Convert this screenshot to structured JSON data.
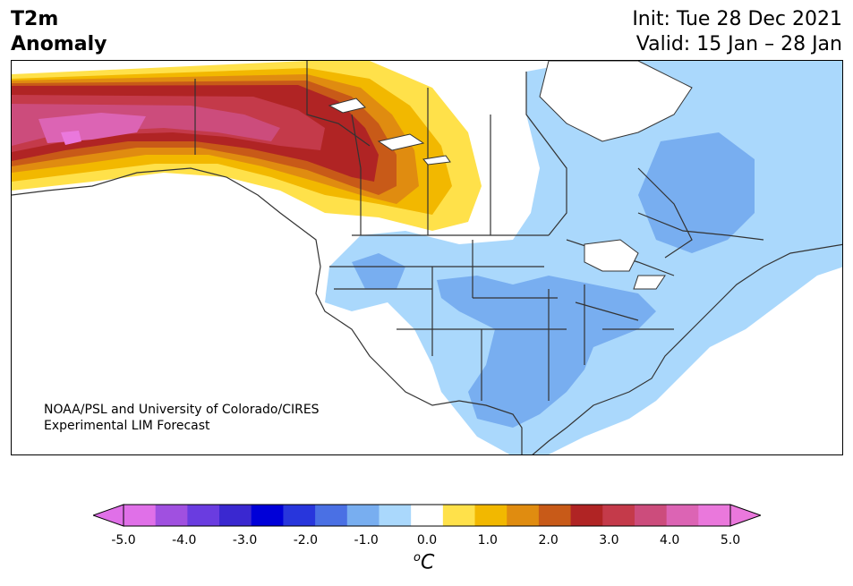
{
  "header": {
    "title_line1": "T2m",
    "title_line2": "Anomaly",
    "init": "Init: Tue 28 Dec 2021",
    "valid": "Valid: 15 Jan – 28 Jan"
  },
  "credit": {
    "line1": "NOAA/PSL and University of Colorado/CIRES",
    "line2": "Experimental LIM Forecast"
  },
  "colorbar": {
    "unit_base": "C",
    "unit_sup": "o",
    "ticks": [
      "-5.0",
      "-4.0",
      "-3.0",
      "-2.0",
      "-1.0",
      "0.0",
      "1.0",
      "2.0",
      "3.0",
      "4.0",
      "5.0"
    ],
    "bins": [
      -5.0,
      -4.5,
      -4.0,
      -3.5,
      -3.0,
      -2.5,
      -2.0,
      -1.5,
      -1.0,
      -0.5,
      0.5,
      1.0,
      1.5,
      2.0,
      2.5,
      3.0,
      3.5,
      4.0,
      4.5,
      5.0
    ],
    "colors": [
      "#e070e8",
      "#a050e0",
      "#6a3ce0",
      "#3a28d0",
      "#0000d8",
      "#2836dc",
      "#4a70e4",
      "#78aef0",
      "#aad8fc",
      "#ffffff",
      "#ffe14a",
      "#f2b800",
      "#e08c10",
      "#c85a18",
      "#b02424",
      "#c43a4a",
      "#cc4c7c",
      "#dc64b4",
      "#ea78dc"
    ],
    "under_color": "#e070e8",
    "over_color": "#ea78dc"
  },
  "map": {
    "region": "North America",
    "anomaly_colors": {
      "warm1": "#ffe14a",
      "warm2": "#f2b800",
      "warm3": "#e08c10",
      "warm4": "#c85a18",
      "warm5": "#b02424",
      "warm6": "#c43a4a",
      "warm7": "#cc4c7c",
      "warm8": "#dc64b4",
      "cool1": "#aad8fc",
      "cool2": "#78aef0"
    }
  }
}
